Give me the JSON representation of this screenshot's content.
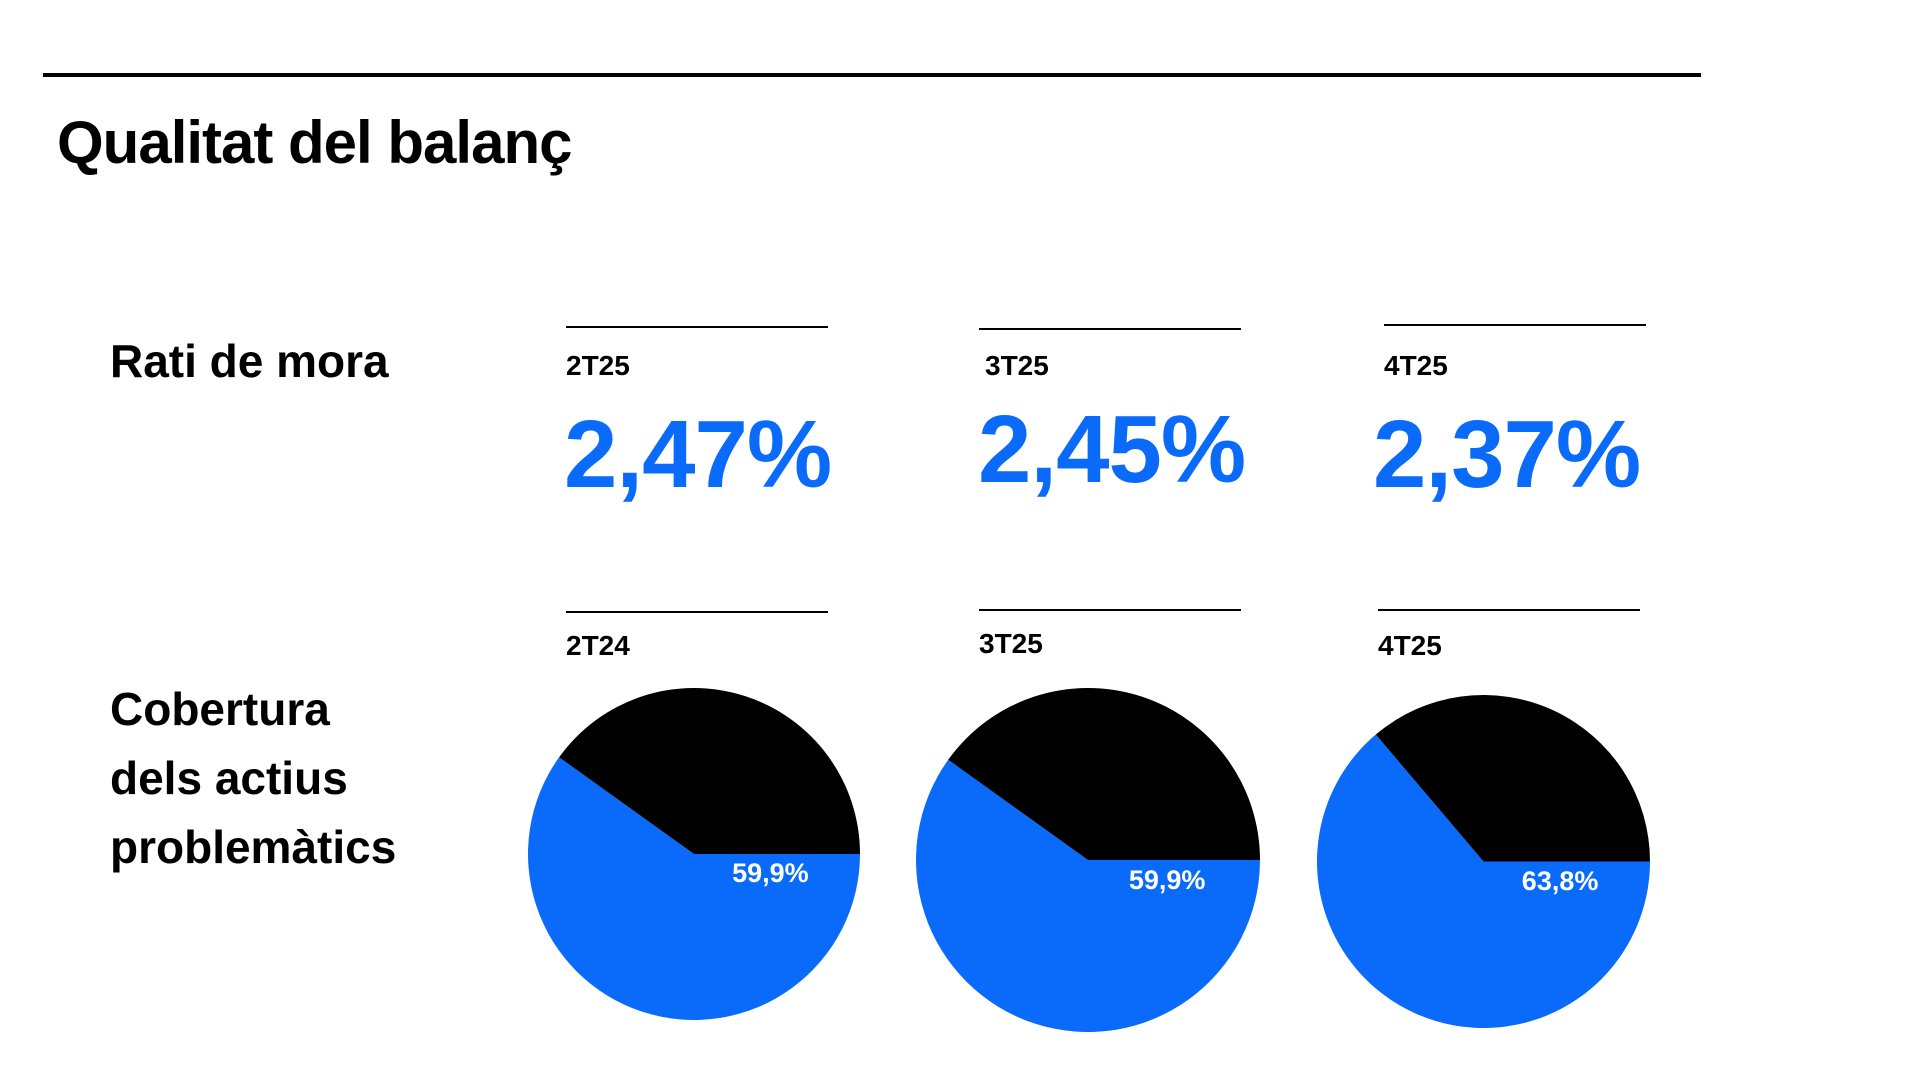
{
  "title": "Qualitat del balanç",
  "colors": {
    "accent": "#0a6bfb",
    "dark": "#000000"
  },
  "sections": {
    "npl": {
      "label": "Rati de mora",
      "items": [
        {
          "period": "2T25",
          "value": "2,47%"
        },
        {
          "period": "3T25",
          "value": "2,45%"
        },
        {
          "period": "4T25",
          "value": "2,37%"
        }
      ]
    },
    "coverage": {
      "label_lines": [
        "Cobertura",
        "dels actius",
        "problemàtics"
      ],
      "items": [
        {
          "period": "2T24",
          "label": "59,9%"
        },
        {
          "period": "3T25",
          "label": "59,9%"
        },
        {
          "period": "4T25",
          "label": "63,8%"
        }
      ]
    }
  },
  "chart_data": [
    {
      "type": "pie",
      "series": [
        {
          "values": [
            59.9,
            40.1
          ]
        }
      ],
      "colors": [
        "#0a6bfb",
        "#000000"
      ],
      "data_labels": [
        "59,9%"
      ]
    },
    {
      "type": "pie",
      "series": [
        {
          "values": [
            59.9,
            40.1
          ]
        }
      ],
      "colors": [
        "#0a6bfb",
        "#000000"
      ],
      "data_labels": [
        "59,9%"
      ]
    },
    {
      "type": "pie",
      "series": [
        {
          "values": [
            63.8,
            36.2
          ]
        }
      ],
      "colors": [
        "#0a6bfb",
        "#000000"
      ],
      "data_labels": [
        "63,8%"
      ]
    }
  ]
}
